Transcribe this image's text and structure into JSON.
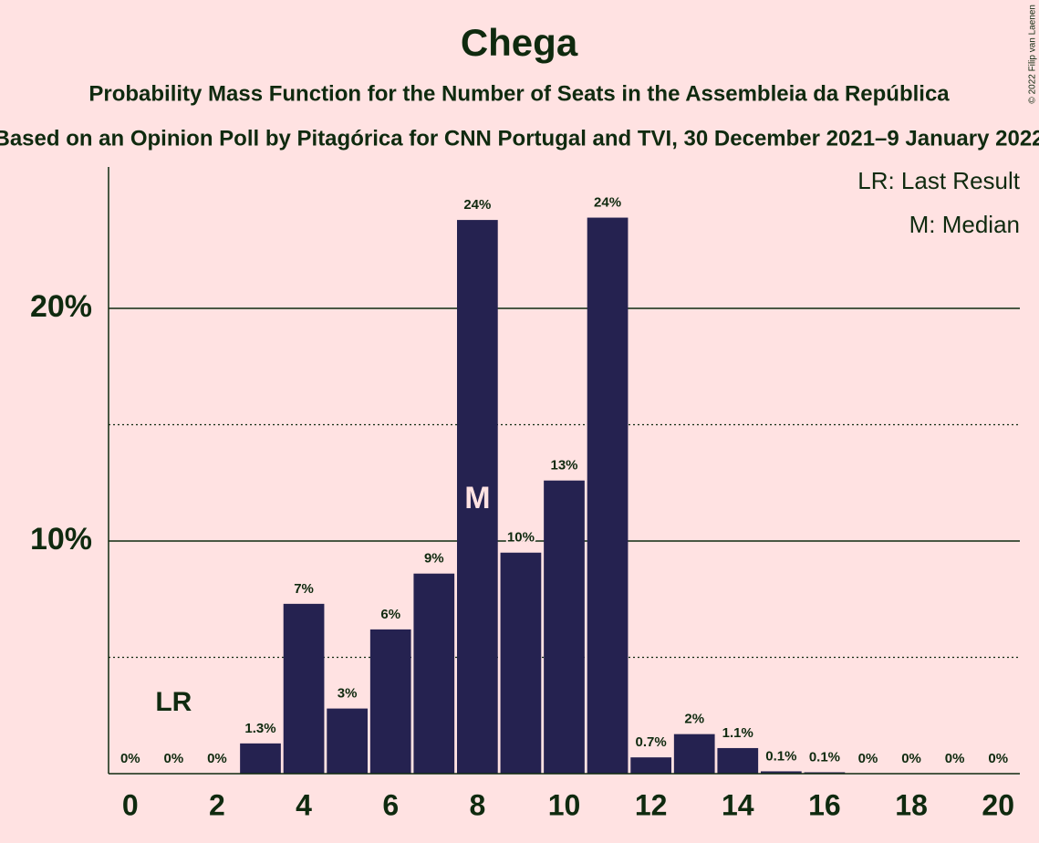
{
  "chart_data": {
    "type": "bar",
    "title": "Chega",
    "subtitle": "Probability Mass Function for the Number of Seats in the Assembleia da República",
    "subtitle2": "Based on an Opinion Poll by Pitagórica for CNN Portugal and TVI, 30 December 2021–9 January 2022",
    "copyright": "© 2022 Filip van Laenen",
    "legend": [
      "LR: Last Result",
      "M: Median"
    ],
    "annotations": [
      {
        "text": "LR",
        "x": 1
      },
      {
        "text": "M",
        "x": 8
      }
    ],
    "x": [
      0,
      1,
      2,
      3,
      4,
      5,
      6,
      7,
      8,
      9,
      10,
      11,
      12,
      13,
      14,
      15,
      16,
      17,
      18,
      19,
      20
    ],
    "values": [
      0,
      0,
      0,
      1.3,
      7.3,
      2.8,
      6.2,
      8.6,
      23.8,
      9.5,
      12.6,
      23.9,
      0.7,
      1.7,
      1.1,
      0.1,
      0.06,
      0,
      0,
      0,
      0
    ],
    "value_labels": [
      "0%",
      "0%",
      "0%",
      "1.3%",
      "7%",
      "3%",
      "6%",
      "9%",
      "24%",
      "10%",
      "13%",
      "24%",
      "0.7%",
      "2%",
      "1.1%",
      "0.1%",
      "0.1%",
      "0%",
      "0%",
      "0%",
      "0%"
    ],
    "color": "#252250",
    "xlim": [
      -0.5,
      20.5
    ],
    "xticks": [
      0,
      2,
      4,
      6,
      8,
      10,
      12,
      14,
      16,
      18,
      20
    ],
    "ylim": [
      0,
      26
    ],
    "yticks": [
      {
        "value": 10,
        "label": "10%"
      },
      {
        "value": 20,
        "label": "20%"
      }
    ],
    "minor_gridlines": [
      5,
      15
    ],
    "grid": true
  }
}
